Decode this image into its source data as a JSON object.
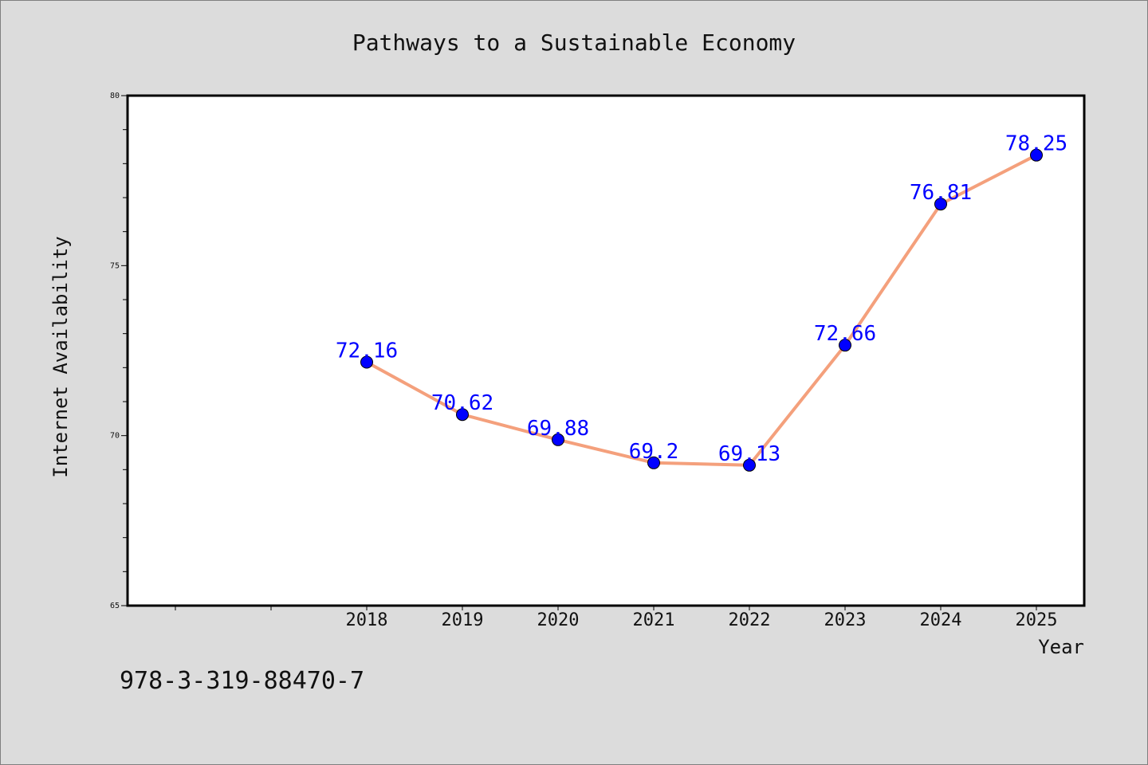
{
  "chart_data": {
    "type": "line",
    "title": "Pathways to a Sustainable Economy",
    "xlabel": "Year",
    "ylabel": "Internet Availability",
    "categories": [
      "2018",
      "2019",
      "2020",
      "2021",
      "2022",
      "2023",
      "2024",
      "2025"
    ],
    "values": [
      72.16,
      70.62,
      69.88,
      69.2,
      69.13,
      72.66,
      76.81,
      78.25
    ],
    "data_labels": [
      "72.16",
      "70.62",
      "69.88",
      "69.2",
      "69.13",
      "72.66",
      "76.81",
      "78.25"
    ],
    "ylim": [
      65,
      80
    ],
    "yticks": [
      "65",
      "70",
      "75",
      "80"
    ],
    "xlim": [
      2015.5,
      2025.5
    ],
    "grid": false,
    "line_color": "#f4a07c",
    "marker_color": "#0000ff",
    "label_color": "#0000ff"
  },
  "annotation": "978-3-319-88470-7"
}
